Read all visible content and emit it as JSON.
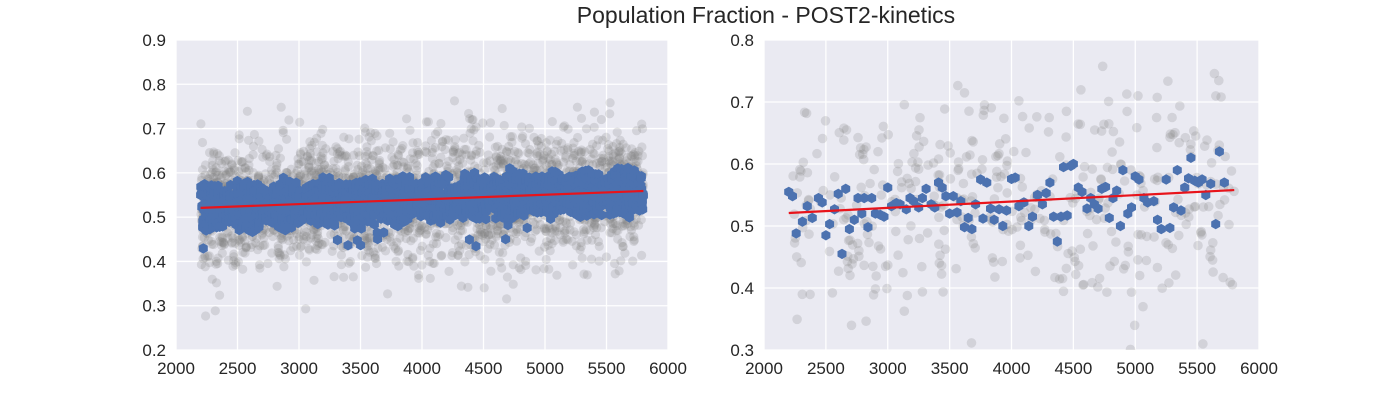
{
  "figure": {
    "title": "Population Fraction - POST2-kinetics"
  },
  "colors": {
    "axes_bg": "#EAEAF2",
    "grid": "#ffffff",
    "raw_points": "#808080",
    "smoothed_points": "#4C72B0",
    "trend_line": "#E8141B"
  },
  "chart_data": [
    {
      "type": "scatter",
      "title": "",
      "xlabel": "",
      "ylabel": "",
      "xlim": [
        2000,
        6000
      ],
      "ylim": [
        0.2,
        0.9
      ],
      "grid": true,
      "x_ticks": [
        2000,
        2500,
        3000,
        3500,
        4000,
        4500,
        5000,
        5500,
        6000
      ],
      "y_ticks": [
        0.2,
        0.3,
        0.4,
        0.5,
        0.6,
        0.7,
        0.8,
        0.9
      ],
      "series": [
        {
          "description": "raw samples",
          "marker": "circle",
          "alpha": 0.25,
          "x_range": [
            2200,
            5800
          ],
          "mean_start": 0.52,
          "mean_end": 0.56,
          "spread_y": [
            0.28,
            0.81
          ]
        },
        {
          "description": "smoothed samples",
          "marker": "hexagon",
          "x_range": [
            2200,
            5800
          ],
          "band_y": [
            0.43,
            0.63
          ]
        },
        {
          "description": "linear fit",
          "type": "line",
          "points": [
            [
              2200,
              0.521
            ],
            [
              5800,
              0.559
            ]
          ]
        }
      ]
    },
    {
      "type": "scatter",
      "title": "",
      "xlabel": "",
      "ylabel": "",
      "xlim": [
        2000,
        6000
      ],
      "ylim": [
        0.3,
        0.8
      ],
      "grid": true,
      "x_ticks": [
        2000,
        2500,
        3000,
        3500,
        4000,
        4500,
        5000,
        5500,
        6000
      ],
      "y_ticks": [
        0.3,
        0.4,
        0.5,
        0.6,
        0.7,
        0.8
      ],
      "series": [
        {
          "description": "raw samples",
          "marker": "circle",
          "alpha": 0.25,
          "x_range": [
            2200,
            5800
          ],
          "spread_y": [
            0.3,
            0.77
          ]
        },
        {
          "description": "binned means",
          "marker": "hexagon",
          "points": [
            [
              2200,
              0.555
            ],
            [
              2230,
              0.548
            ],
            [
              2260,
              0.488
            ],
            [
              2310,
              0.507
            ],
            [
              2350,
              0.532
            ],
            [
              2390,
              0.513
            ],
            [
              2440,
              0.545
            ],
            [
              2470,
              0.538
            ],
            [
              2500,
              0.485
            ],
            [
              2530,
              0.503
            ],
            [
              2570,
              0.527
            ],
            [
              2600,
              0.552
            ],
            [
              2630,
              0.455
            ],
            [
              2660,
              0.56
            ],
            [
              2690,
              0.495
            ],
            [
              2730,
              0.51
            ],
            [
              2760,
              0.545
            ],
            [
              2790,
              0.52
            ],
            [
              2810,
              0.545
            ],
            [
              2840,
              0.498
            ],
            [
              2870,
              0.545
            ],
            [
              2900,
              0.52
            ],
            [
              2940,
              0.518
            ],
            [
              2970,
              0.515
            ],
            [
              3000,
              0.562
            ],
            [
              3030,
              0.532
            ],
            [
              3070,
              0.537
            ],
            [
              3100,
              0.535
            ],
            [
              3150,
              0.527
            ],
            [
              3180,
              0.545
            ],
            [
              3210,
              0.54
            ],
            [
              3250,
              0.53
            ],
            [
              3280,
              0.545
            ],
            [
              3310,
              0.56
            ],
            [
              3350,
              0.535
            ],
            [
              3380,
              0.53
            ],
            [
              3410,
              0.57
            ],
            [
              3440,
              0.562
            ],
            [
              3470,
              0.548
            ],
            [
              3500,
              0.52
            ],
            [
              3530,
              0.548
            ],
            [
              3560,
              0.522
            ],
            [
              3590,
              0.54
            ],
            [
              3620,
              0.498
            ],
            [
              3650,
              0.513
            ],
            [
              3680,
              0.495
            ],
            [
              3710,
              0.535
            ],
            [
              3750,
              0.575
            ],
            [
              3770,
              0.512
            ],
            [
              3800,
              0.57
            ],
            [
              3830,
              0.528
            ],
            [
              3860,
              0.51
            ],
            [
              3900,
              0.527
            ],
            [
              3930,
              0.5
            ],
            [
              3960,
              0.525
            ],
            [
              4000,
              0.576
            ],
            [
              4030,
              0.578
            ],
            [
              4060,
              0.532
            ],
            [
              4100,
              0.538
            ],
            [
              4140,
              0.5
            ],
            [
              4170,
              0.515
            ],
            [
              4210,
              0.55
            ],
            [
              4250,
              0.535
            ],
            [
              4280,
              0.553
            ],
            [
              4310,
              0.57
            ],
            [
              4340,
              0.515
            ],
            [
              4370,
              0.475
            ],
            [
              4400,
              0.515
            ],
            [
              4420,
              0.595
            ],
            [
              4450,
              0.517
            ],
            [
              4480,
              0.597
            ],
            [
              4500,
              0.6
            ],
            [
              4540,
              0.562
            ],
            [
              4570,
              0.555
            ],
            [
              4610,
              0.528
            ],
            [
              4640,
              0.545
            ],
            [
              4670,
              0.535
            ],
            [
              4700,
              0.528
            ],
            [
              4730,
              0.56
            ],
            [
              4760,
              0.563
            ],
            [
              4790,
              0.513
            ],
            [
              4820,
              0.545
            ],
            [
              4850,
              0.557
            ],
            [
              4880,
              0.5
            ],
            [
              4900,
              0.59
            ],
            [
              4940,
              0.52
            ],
            [
              4970,
              0.53
            ],
            [
              5000,
              0.58
            ],
            [
              5030,
              0.575
            ],
            [
              5070,
              0.545
            ],
            [
              5100,
              0.538
            ],
            [
              5150,
              0.54
            ],
            [
              5180,
              0.51
            ],
            [
              5210,
              0.495
            ],
            [
              5250,
              0.575
            ],
            [
              5280,
              0.497
            ],
            [
              5310,
              0.53
            ],
            [
              5340,
              0.59
            ],
            [
              5370,
              0.525
            ],
            [
              5400,
              0.562
            ],
            [
              5430,
              0.577
            ],
            [
              5450,
              0.61
            ],
            [
              5480,
              0.573
            ],
            [
              5510,
              0.57
            ],
            [
              5540,
              0.575
            ],
            [
              5570,
              0.55
            ],
            [
              5610,
              0.568
            ],
            [
              5650,
              0.503
            ],
            [
              5680,
              0.62
            ],
            [
              5720,
              0.57
            ]
          ]
        },
        {
          "description": "linear fit",
          "type": "line",
          "points": [
            [
              2200,
              0.521
            ],
            [
              5800,
              0.558
            ]
          ]
        }
      ]
    }
  ]
}
